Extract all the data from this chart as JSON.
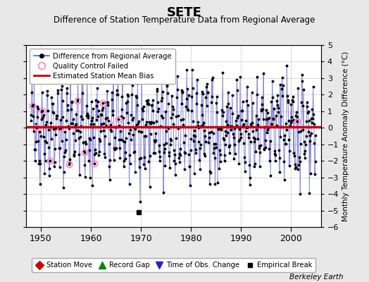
{
  "title": "SETE",
  "subtitle": "Difference of Station Temperature Data from Regional Average",
  "ylabel": "Monthly Temperature Anomaly Difference (°C)",
  "background_color": "#e8e8e8",
  "plot_background": "#ffffff",
  "bias_line_value": 0.05,
  "bias_line_color": "#cc0000",
  "data_line_color": "#5555cc",
  "data_line_alpha": 0.7,
  "data_dot_color": "#000000",
  "qc_fail_color": "#ff88cc",
  "empirical_break_year": 1969.5,
  "empirical_break_value": -5.1,
  "xlim": [
    1947,
    2006
  ],
  "ylim": [
    -6,
    5
  ],
  "yticks": [
    -6,
    -5,
    -4,
    -3,
    -2,
    -1,
    0,
    1,
    2,
    3,
    4,
    5
  ],
  "xticks": [
    1950,
    1960,
    1970,
    1980,
    1990,
    2000
  ],
  "grid_color": "#cccccc",
  "watermark": "Berkeley Earth",
  "seed": 42,
  "years_start": 1948,
  "years_end": 2005
}
